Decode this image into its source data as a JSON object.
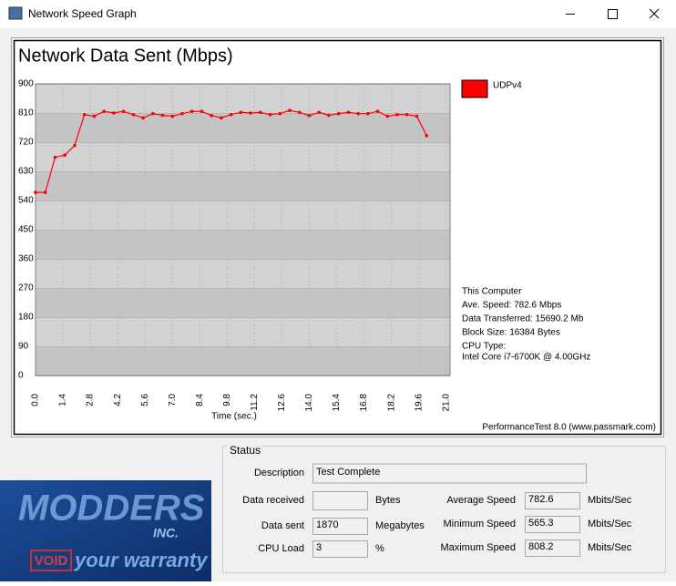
{
  "window": {
    "title": "Network Speed Graph"
  },
  "chart_data": {
    "type": "line",
    "title": "Network Data Sent (Mbps)",
    "x_label": "Time (sec.)",
    "x": [
      0,
      0.5,
      1,
      1.5,
      2,
      2.5,
      3,
      3.5,
      4,
      4.5,
      5,
      5.5,
      6,
      6.5,
      7,
      7.5,
      8,
      8.5,
      9,
      9.5,
      10,
      10.5,
      11,
      11.5,
      12,
      12.5,
      13,
      13.5,
      14,
      14.5,
      15,
      15.5,
      16,
      16.5,
      17,
      17.5,
      18,
      18.5,
      19,
      19.5,
      20
    ],
    "series": [
      {
        "name": "UDPv4",
        "color": "#ff0000",
        "values": [
          565,
          565,
          673,
          680,
          710,
          805,
          800,
          815,
          810,
          815,
          805,
          795,
          808,
          803,
          800,
          808,
          815,
          815,
          802,
          795,
          805,
          812,
          810,
          812,
          805,
          808,
          818,
          812,
          802,
          812,
          803,
          808,
          812,
          808,
          808,
          815,
          800,
          805,
          805,
          800,
          740
        ]
      }
    ],
    "xlim": [
      0,
      21.2
    ],
    "xticks": [
      {
        "value": 0,
        "label": "0.0"
      },
      1.4,
      2.8,
      4.2,
      5.6,
      {
        "value": 7,
        "label": "7.0"
      },
      8.4,
      9.8,
      11.2,
      12.6,
      {
        "value": 14,
        "label": "14.0"
      },
      15.4,
      16.8,
      18.2,
      19.6,
      {
        "value": 21,
        "label": "21.0"
      }
    ],
    "ylim": [
      0,
      900
    ],
    "yticks": [
      0,
      90,
      180,
      270,
      360,
      450,
      540,
      630,
      720,
      810,
      900
    ],
    "grid": true,
    "annotations": [
      "This Computer",
      "Ave. Speed: 782.6 Mbps",
      "Data Transferred: 15690.2 Mb",
      "Block Size: 16384 Bytes",
      "CPU Type:",
      "Intel Core i7-6700K @ 4.00GHz"
    ],
    "footnote": "PerformanceTest 8.0 (www.passmark.com)"
  },
  "status": {
    "title": "Status",
    "description": {
      "label": "Description",
      "value": "Test Complete"
    },
    "data_received": {
      "label": "Data received",
      "unit": "Bytes"
    },
    "data_sent": {
      "label": "Data sent",
      "value": 1870,
      "unit": "Megabytes"
    },
    "cpu_load": {
      "label": "CPU Load",
      "value": 3,
      "unit": "%"
    },
    "average_speed": {
      "label": "Average Speed",
      "value": 782.6,
      "unit": "Mbits/Sec"
    },
    "minimum_speed": {
      "label": "Minimum Speed",
      "value": 565.3,
      "unit": "Mbits/Sec"
    },
    "maximum_speed": {
      "label": "Maximum Speed",
      "value": 808.2,
      "unit": "Mbits/Sec"
    }
  },
  "watermark": {
    "brand": "MODDERS",
    "suffix": "INC.",
    "badge": "VOID",
    "tagline": "your warranty"
  }
}
